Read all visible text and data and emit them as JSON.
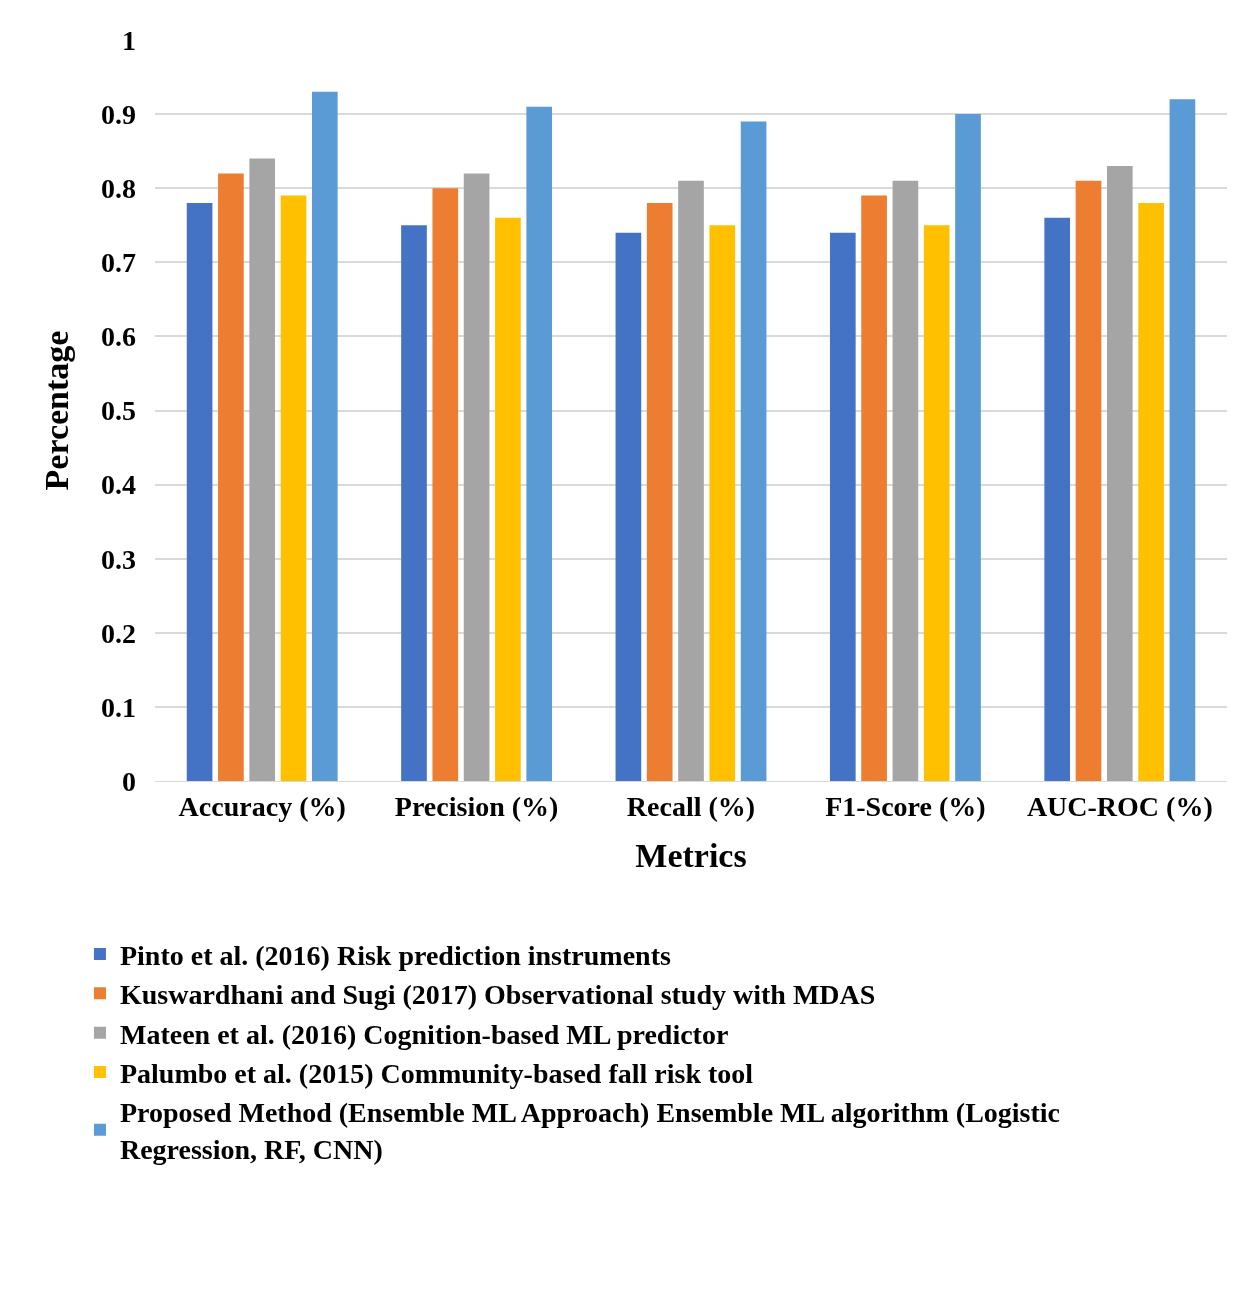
{
  "chart_data": {
    "type": "bar",
    "xlabel": "Metrics",
    "ylabel": "Percentage",
    "categories": [
      "Accuracy (%)",
      "Precision (%)",
      "Recall (%)",
      "F1-Score (%)",
      "AUC-ROC (%)"
    ],
    "series": [
      {
        "name": "Pinto et al. (2016) Risk prediction instruments",
        "color": "#4472c4",
        "values": [
          0.78,
          0.75,
          0.74,
          0.74,
          0.76
        ]
      },
      {
        "name": "Kuswardhani and Sugi (2017) Observational study with MDAS",
        "color": "#ed7d31",
        "values": [
          0.82,
          0.8,
          0.78,
          0.79,
          0.81
        ]
      },
      {
        "name": "Mateen et al. (2016) Cognition-based ML predictor",
        "color": "#a5a5a5",
        "values": [
          0.84,
          0.82,
          0.81,
          0.81,
          0.83
        ]
      },
      {
        "name": "Palumbo et al. (2015) Community-based fall risk tool",
        "color": "#ffc000",
        "values": [
          0.79,
          0.76,
          0.75,
          0.75,
          0.78
        ]
      },
      {
        "name": "Proposed Method (Ensemble ML Approach) Ensemble ML algorithm (Logistic Regression, RF, CNN)",
        "color": "#5b9bd5",
        "values": [
          0.93,
          0.91,
          0.89,
          0.9,
          0.92
        ]
      }
    ],
    "ylim": [
      0,
      1
    ],
    "yticks": [
      0,
      0.1,
      0.2,
      0.3,
      0.4,
      0.5,
      0.6,
      0.7,
      0.8,
      0.9,
      1
    ],
    "grid": "y",
    "legend": "bottom"
  }
}
